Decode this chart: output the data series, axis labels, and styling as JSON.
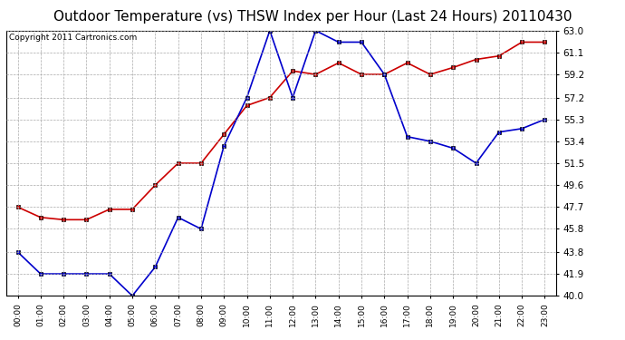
{
  "title": "Outdoor Temperature (vs) THSW Index per Hour (Last 24 Hours) 20110430",
  "copyright": "Copyright 2011 Cartronics.com",
  "x_labels": [
    "00:00",
    "01:00",
    "02:00",
    "03:00",
    "04:00",
    "05:00",
    "06:00",
    "07:00",
    "08:00",
    "09:00",
    "10:00",
    "11:00",
    "12:00",
    "13:00",
    "14:00",
    "15:00",
    "16:00",
    "17:00",
    "18:00",
    "19:00",
    "20:00",
    "21:00",
    "22:00",
    "23:00"
  ],
  "y_ticks": [
    40.0,
    41.9,
    43.8,
    45.8,
    47.7,
    49.6,
    51.5,
    53.4,
    55.3,
    57.2,
    59.2,
    61.1,
    63.0
  ],
  "ylim": [
    40.0,
    63.0
  ],
  "red_data": [
    47.7,
    46.8,
    46.6,
    46.6,
    47.5,
    47.5,
    49.6,
    51.5,
    51.5,
    54.0,
    56.5,
    57.2,
    59.5,
    59.2,
    60.2,
    59.2,
    59.2,
    60.2,
    59.2,
    59.8,
    60.5,
    60.8,
    62.0,
    62.0
  ],
  "blue_data": [
    43.8,
    41.9,
    41.9,
    41.9,
    41.9,
    40.0,
    42.5,
    46.8,
    45.8,
    53.0,
    57.2,
    63.0,
    57.2,
    63.0,
    62.0,
    62.0,
    59.2,
    53.8,
    53.4,
    52.8,
    51.5,
    54.2,
    54.5,
    55.3
  ],
  "red_color": "#cc0000",
  "blue_color": "#0000cc",
  "bg_color": "#ffffff",
  "grid_color": "#aaaaaa",
  "title_fontsize": 11,
  "copyright_fontsize": 6.5
}
